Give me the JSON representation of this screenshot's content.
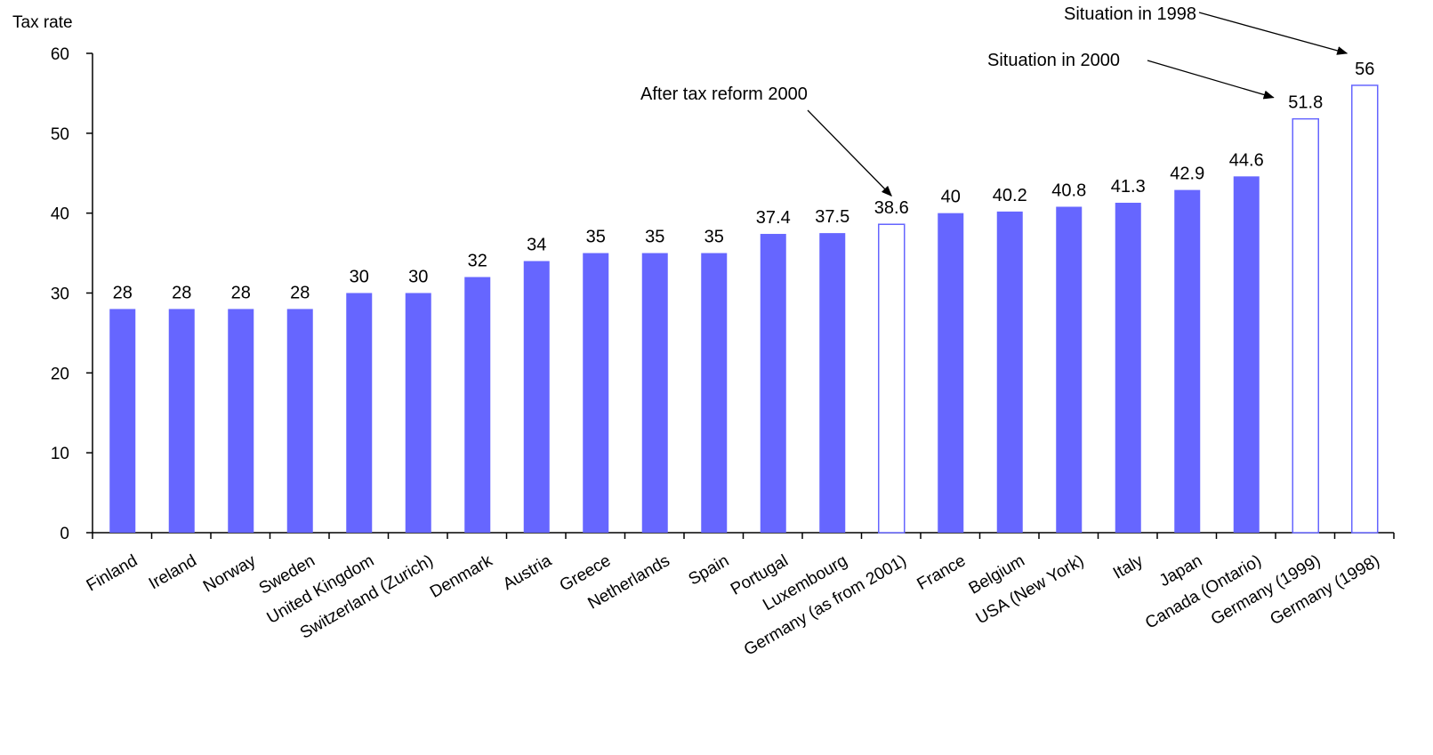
{
  "chart_data": {
    "type": "bar",
    "ylabel": "Tax rate",
    "ylim": [
      0,
      60
    ],
    "yticks": [
      0,
      10,
      20,
      30,
      40,
      50,
      60
    ],
    "grid": false,
    "colors": {
      "filled": "#6666ff",
      "outline": "#6666ff"
    },
    "categories": [
      "Finland",
      "Ireland",
      "Norway",
      "Sweden",
      "United Kingdom",
      "Switzerland (Zurich)",
      "Denmark",
      "Austria",
      "Greece",
      "Netherlands",
      "Spain",
      "Portugal",
      "Luxembourg",
      "Germany (as from 2001)",
      "France",
      "Belgium",
      "USA (New York)",
      "Italy",
      "Japan",
      "Canada (Ontario)",
      "Germany (1999)",
      "Germany (1998)"
    ],
    "values": [
      28,
      28,
      28,
      28,
      30,
      30,
      32,
      34,
      35,
      35,
      35,
      37.4,
      37.5,
      38.6,
      40,
      40.2,
      40.8,
      41.3,
      42.9,
      44.6,
      51.8,
      56
    ],
    "value_labels": [
      "28",
      "28",
      "28",
      "28",
      "30",
      "30",
      "32",
      "34",
      "35",
      "35",
      "35",
      "37.4",
      "37.5",
      "38.6",
      "40",
      "40.2",
      "40.8",
      "41.3",
      "42.9",
      "44.6",
      "51.8",
      "56"
    ],
    "hollow": [
      false,
      false,
      false,
      false,
      false,
      false,
      false,
      false,
      false,
      false,
      false,
      false,
      false,
      true,
      false,
      false,
      false,
      false,
      false,
      false,
      true,
      true
    ],
    "annotations": [
      {
        "text": "After tax reform 2000",
        "target_index": 13
      },
      {
        "text": "Situation in 2000",
        "target_index": 20
      },
      {
        "text": "Situation in 1998",
        "target_index": 21
      }
    ]
  }
}
